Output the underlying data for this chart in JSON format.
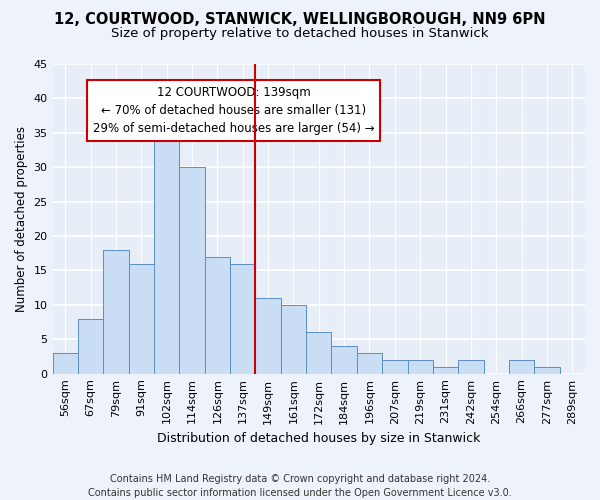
{
  "title1": "12, COURTWOOD, STANWICK, WELLINGBOROUGH, NN9 6PN",
  "title2": "Size of property relative to detached houses in Stanwick",
  "xlabel": "Distribution of detached houses by size in Stanwick",
  "ylabel": "Number of detached properties",
  "bar_labels": [
    "56sqm",
    "67sqm",
    "79sqm",
    "91sqm",
    "102sqm",
    "114sqm",
    "126sqm",
    "137sqm",
    "149sqm",
    "161sqm",
    "172sqm",
    "184sqm",
    "196sqm",
    "207sqm",
    "219sqm",
    "231sqm",
    "242sqm",
    "254sqm",
    "266sqm",
    "277sqm",
    "289sqm"
  ],
  "bar_values": [
    3,
    8,
    18,
    16,
    35,
    30,
    17,
    16,
    11,
    10,
    6,
    4,
    3,
    2,
    2,
    1,
    2,
    0,
    2,
    1,
    0
  ],
  "bar_color": "#c9ddf5",
  "bar_edge_color": "#5b8ec4",
  "vline_index": 7,
  "vline_color": "#cc0000",
  "annotation_line1": "12 COURTWOOD: 139sqm",
  "annotation_line2": "← 70% of detached houses are smaller (131)",
  "annotation_line3": "29% of semi-detached houses are larger (54) →",
  "annotation_box_color": "#ffffff",
  "annotation_box_edge": "#cc0000",
  "ylim": [
    0,
    45
  ],
  "yticks": [
    0,
    5,
    10,
    15,
    20,
    25,
    30,
    35,
    40,
    45
  ],
  "footnote": "Contains HM Land Registry data © Crown copyright and database right 2024.\nContains public sector information licensed under the Open Government Licence v3.0.",
  "bg_color": "#eef2fa",
  "plot_bg_color": "#e8eef8",
  "grid_color": "#ffffff",
  "title1_fontsize": 10.5,
  "title2_fontsize": 9.5,
  "xlabel_fontsize": 9,
  "ylabel_fontsize": 8.5,
  "tick_fontsize": 8,
  "annotation_fontsize": 8.5,
  "footnote_fontsize": 7
}
